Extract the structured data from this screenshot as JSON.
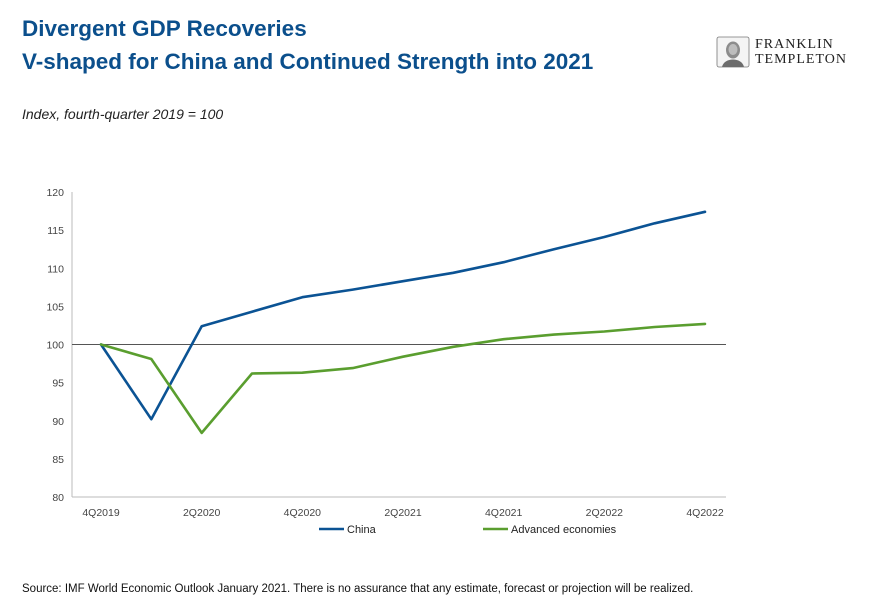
{
  "header": {
    "title_line1": "Divergent GDP Recoveries",
    "title_line2": "V-shaped for China and Continued Strength into 2021",
    "subtitle": "Index, fourth-quarter 2019 = 100"
  },
  "logo": {
    "line1": "FRANKLIN",
    "line2": "TEMPLETON"
  },
  "footer": {
    "source": "Source: IMF World Economic Outlook January 2021. There is no assurance that any estimate, forecast or projection will be realized."
  },
  "colors": {
    "china": "#0b5394",
    "advanced": "#5a9e2f",
    "title": "#0b4f8c"
  },
  "chart_data": {
    "type": "line",
    "x": [
      "4Q2019",
      "1Q2020",
      "2Q2020",
      "3Q2020",
      "4Q2020",
      "1Q2021",
      "2Q2021",
      "3Q2021",
      "4Q2021",
      "1Q2022",
      "2Q2022",
      "3Q2022",
      "4Q2022"
    ],
    "x_tick_labels": [
      "4Q2019",
      "2Q2020",
      "4Q2020",
      "2Q2021",
      "4Q2021",
      "2Q2022",
      "4Q2022"
    ],
    "series": [
      {
        "name": "China",
        "values": [
          100,
          90.2,
          102.4,
          104.3,
          106.2,
          107.2,
          108.3,
          109.4,
          110.8,
          112.5,
          114.1,
          115.9,
          117.4
        ]
      },
      {
        "name": "Advanced economies",
        "values": [
          100,
          98.1,
          88.4,
          96.2,
          96.3,
          96.9,
          98.4,
          99.7,
          100.7,
          101.3,
          101.7,
          102.3,
          102.7
        ]
      }
    ],
    "ylim": [
      80,
      120
    ],
    "y_ticks": [
      80,
      85,
      90,
      95,
      100,
      105,
      110,
      115,
      120
    ],
    "reference_line": 100,
    "grid": false,
    "legend_position": "bottom"
  }
}
